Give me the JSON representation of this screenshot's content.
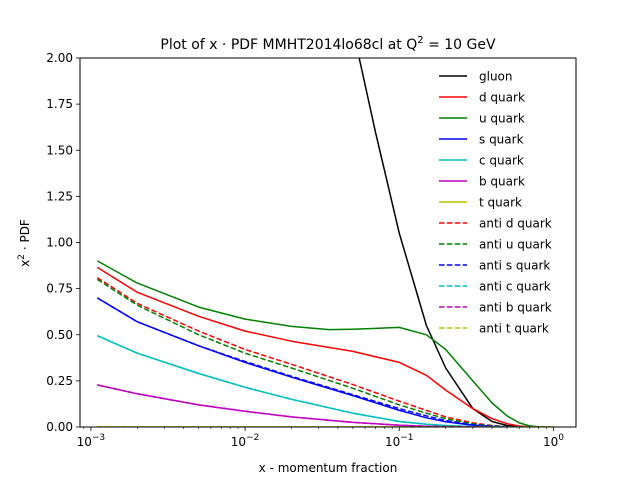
{
  "chart_data": {
    "type": "line",
    "title_main": "Plot of x · PDF MMHT2014lo68cl at Q",
    "title_sup": "2",
    "title_tail": " = 10 GeV",
    "xlabel": "x - momentum fraction",
    "ylabel_main": "x",
    "ylabel_sup": "2",
    "ylabel_tail": " · PDF",
    "xscale": "log",
    "xlim": [
      0.00085,
      1.4
    ],
    "ylim": [
      0,
      2.0
    ],
    "grid": false,
    "legend_position": "top-right",
    "x_ticks": [
      {
        "value": 0.001,
        "base": "10",
        "exp": "−3"
      },
      {
        "value": 0.01,
        "base": "10",
        "exp": "−2"
      },
      {
        "value": 0.1,
        "base": "10",
        "exp": "−1"
      },
      {
        "value": 1,
        "base": "10",
        "exp": "0"
      }
    ],
    "y_ticks": [
      {
        "value": 0.0,
        "label": "0.00"
      },
      {
        "value": 0.25,
        "label": "0.25"
      },
      {
        "value": 0.5,
        "label": "0.50"
      },
      {
        "value": 0.75,
        "label": "0.75"
      },
      {
        "value": 1.0,
        "label": "1.00"
      },
      {
        "value": 1.25,
        "label": "1.25"
      },
      {
        "value": 1.5,
        "label": "1.50"
      },
      {
        "value": 1.75,
        "label": "1.75"
      },
      {
        "value": 2.0,
        "label": "2.00"
      }
    ],
    "series": [
      {
        "name": "gluon",
        "color": "#000000",
        "dash": false,
        "x": [
          0.055,
          0.07,
          0.1,
          0.15,
          0.2,
          0.3,
          0.4,
          0.5,
          0.6,
          0.7,
          0.8
        ],
        "y": [
          2.0,
          1.6,
          1.05,
          0.55,
          0.32,
          0.1,
          0.03,
          0.008,
          0.002,
          0.0,
          0.0
        ]
      },
      {
        "name": "d quark",
        "color": "#ff0000",
        "dash": false,
        "x": [
          0.0011,
          0.002,
          0.005,
          0.01,
          0.02,
          0.05,
          0.1,
          0.15,
          0.2,
          0.3,
          0.4,
          0.5,
          0.6,
          0.7,
          0.8
        ],
        "y": [
          0.865,
          0.73,
          0.6,
          0.52,
          0.465,
          0.41,
          0.35,
          0.28,
          0.2,
          0.1,
          0.045,
          0.018,
          0.005,
          0.001,
          0.0
        ]
      },
      {
        "name": "u quark",
        "color": "#008000",
        "dash": false,
        "x": [
          0.0011,
          0.002,
          0.005,
          0.01,
          0.02,
          0.035,
          0.05,
          0.1,
          0.15,
          0.2,
          0.3,
          0.4,
          0.5,
          0.6,
          0.7,
          0.8,
          0.9
        ],
        "y": [
          0.9,
          0.78,
          0.65,
          0.585,
          0.545,
          0.528,
          0.53,
          0.54,
          0.5,
          0.42,
          0.25,
          0.13,
          0.06,
          0.022,
          0.006,
          0.001,
          0.0
        ]
      },
      {
        "name": "s quark",
        "color": "#0000ff",
        "dash": false,
        "x": [
          0.0011,
          0.002,
          0.005,
          0.01,
          0.02,
          0.05,
          0.1,
          0.15,
          0.2,
          0.3,
          0.4,
          0.5,
          0.6
        ],
        "y": [
          0.7,
          0.57,
          0.44,
          0.35,
          0.27,
          0.17,
          0.09,
          0.05,
          0.028,
          0.009,
          0.003,
          0.0005,
          0.0
        ]
      },
      {
        "name": "c quark",
        "color": "#00bfbf",
        "dash": false,
        "x": [
          0.0011,
          0.002,
          0.005,
          0.01,
          0.02,
          0.05,
          0.1,
          0.15,
          0.2,
          0.3,
          0.4,
          0.5
        ],
        "y": [
          0.495,
          0.4,
          0.29,
          0.215,
          0.15,
          0.075,
          0.03,
          0.015,
          0.008,
          0.002,
          0.0005,
          0.0
        ]
      },
      {
        "name": "b quark",
        "color": "#bf00bf",
        "dash": false,
        "x": [
          0.0011,
          0.002,
          0.005,
          0.01,
          0.02,
          0.05,
          0.1,
          0.15,
          0.2,
          0.3,
          0.4
        ],
        "y": [
          0.228,
          0.18,
          0.12,
          0.085,
          0.055,
          0.025,
          0.01,
          0.004,
          0.002,
          0.0005,
          0.0
        ]
      },
      {
        "name": "t quark",
        "color": "#bfbf00",
        "dash": false,
        "x": [
          0.0011,
          1.0
        ],
        "y": [
          0.0,
          0.0
        ]
      },
      {
        "name": "anti d quark",
        "color": "#ff0000",
        "dash": true,
        "x": [
          0.0011,
          0.002,
          0.005,
          0.01,
          0.02,
          0.05,
          0.1,
          0.15,
          0.2,
          0.3,
          0.4,
          0.5,
          0.6,
          0.7
        ],
        "y": [
          0.81,
          0.67,
          0.52,
          0.42,
          0.34,
          0.23,
          0.14,
          0.09,
          0.055,
          0.022,
          0.008,
          0.002,
          0.0005,
          0.0
        ]
      },
      {
        "name": "anti u quark",
        "color": "#008000",
        "dash": true,
        "x": [
          0.0011,
          0.002,
          0.005,
          0.01,
          0.02,
          0.05,
          0.1,
          0.15,
          0.2,
          0.3,
          0.4,
          0.5,
          0.6,
          0.7
        ],
        "y": [
          0.8,
          0.66,
          0.5,
          0.4,
          0.32,
          0.21,
          0.12,
          0.075,
          0.045,
          0.017,
          0.006,
          0.0015,
          0.0003,
          0.0
        ]
      },
      {
        "name": "anti s quark",
        "color": "#0000ff",
        "dash": true,
        "x": [
          0.0011,
          0.002,
          0.005,
          0.01,
          0.02,
          0.05,
          0.1,
          0.15,
          0.2,
          0.3,
          0.4,
          0.5,
          0.6
        ],
        "y": [
          0.7,
          0.57,
          0.44,
          0.355,
          0.275,
          0.175,
          0.1,
          0.06,
          0.035,
          0.012,
          0.004,
          0.001,
          0.0
        ]
      },
      {
        "name": "anti c quark",
        "color": "#00bfbf",
        "dash": true,
        "x": [
          0.0011,
          0.002,
          0.005,
          0.01,
          0.02,
          0.05,
          0.1,
          0.15,
          0.2,
          0.3,
          0.4,
          0.5
        ],
        "y": [
          0.495,
          0.4,
          0.29,
          0.215,
          0.15,
          0.075,
          0.03,
          0.015,
          0.008,
          0.002,
          0.0005,
          0.0
        ]
      },
      {
        "name": "anti b quark",
        "color": "#bf00bf",
        "dash": true,
        "x": [
          0.0011,
          0.002,
          0.005,
          0.01,
          0.02,
          0.05,
          0.1,
          0.15,
          0.2,
          0.3,
          0.4
        ],
        "y": [
          0.228,
          0.18,
          0.12,
          0.085,
          0.055,
          0.025,
          0.01,
          0.004,
          0.002,
          0.0005,
          0.0
        ]
      },
      {
        "name": "anti t quark",
        "color": "#bfbf00",
        "dash": true,
        "x": [
          0.0011,
          1.0
        ],
        "y": [
          0.0,
          0.0
        ]
      }
    ]
  }
}
